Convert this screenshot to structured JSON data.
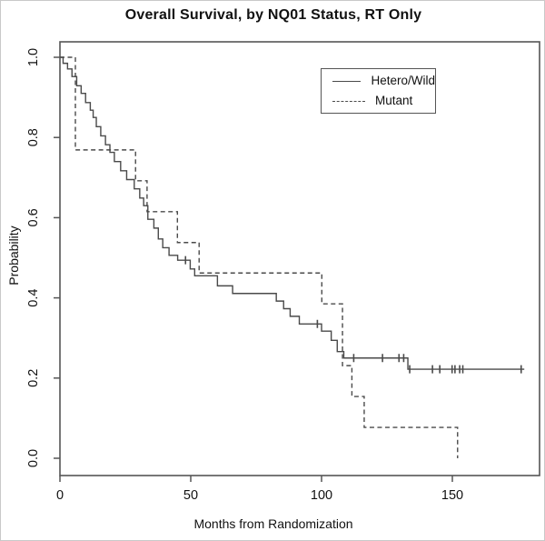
{
  "chart_data": {
    "type": "line",
    "subtype": "kaplan_meier_step",
    "title": "Overall Survival, by NQ01 Status, RT Only",
    "xlabel": "Months from Randomization",
    "ylabel": "Probability",
    "xlim": [
      0,
      183
    ],
    "ylim": [
      0.0,
      1.0
    ],
    "xticks": [
      0,
      50,
      100,
      150
    ],
    "yticks": [
      0.0,
      0.2,
      0.4,
      0.6,
      0.8,
      1.0
    ],
    "grid": false,
    "line_color": "#4a4a4a",
    "axis_color": "#555555",
    "text_color": "#111111",
    "background_color": "#ffffff",
    "legend": {
      "position": "top-right",
      "entries": [
        {
          "label": "Hetero/Wild",
          "line_style": "solid"
        },
        {
          "label": "Mutant",
          "line_style": "dashed"
        }
      ]
    },
    "series": [
      {
        "name": "Hetero/Wild",
        "line_style": "solid",
        "end_time": 177.5,
        "steps": [
          [
            0,
            1.0
          ],
          [
            1.2,
            0.985
          ],
          [
            2.9,
            0.971
          ],
          [
            4.6,
            0.952
          ],
          [
            6.4,
            0.929
          ],
          [
            8.1,
            0.91
          ],
          [
            9.8,
            0.887
          ],
          [
            11.6,
            0.868
          ],
          [
            12.7,
            0.85
          ],
          [
            13.9,
            0.827
          ],
          [
            15.6,
            0.804
          ],
          [
            17.4,
            0.782
          ],
          [
            19.1,
            0.763
          ],
          [
            20.8,
            0.74
          ],
          [
            23.2,
            0.717
          ],
          [
            25.5,
            0.695
          ],
          [
            28.4,
            0.672
          ],
          [
            30.5,
            0.649
          ],
          [
            32.0,
            0.63
          ],
          [
            33.6,
            0.596
          ],
          [
            35.9,
            0.574
          ],
          [
            37.6,
            0.547
          ],
          [
            39.3,
            0.525
          ],
          [
            41.7,
            0.506
          ],
          [
            45.0,
            0.494
          ],
          [
            49.8,
            0.472
          ],
          [
            51.5,
            0.455
          ],
          [
            60.2,
            0.43
          ],
          [
            66.0,
            0.411
          ],
          [
            82.7,
            0.392
          ],
          [
            85.5,
            0.373
          ],
          [
            88.0,
            0.354
          ],
          [
            91.5,
            0.335
          ],
          [
            100.0,
            0.317
          ],
          [
            103.7,
            0.294
          ],
          [
            106.0,
            0.266
          ],
          [
            108.5,
            0.25
          ],
          [
            133.0,
            0.222
          ]
        ],
        "censor_times": [
          48.0,
          98.4,
          112.3,
          123.3,
          129.6,
          131.4,
          133.7,
          142.4,
          145.2,
          149.9,
          151.0,
          152.8,
          154.0,
          176.3
        ]
      },
      {
        "name": "Mutant",
        "line_style": "dashed",
        "end_time": 152.0,
        "steps": [
          [
            0,
            1.0
          ],
          [
            5.9,
            0.769
          ],
          [
            28.9,
            0.692
          ],
          [
            33.3,
            0.615
          ],
          [
            44.9,
            0.538
          ],
          [
            53.2,
            0.462
          ],
          [
            100.1,
            0.385
          ],
          [
            108.0,
            0.231
          ],
          [
            111.6,
            0.154
          ],
          [
            116.3,
            0.077
          ],
          [
            152.0,
            0.0
          ]
        ],
        "censor_times": []
      }
    ]
  }
}
